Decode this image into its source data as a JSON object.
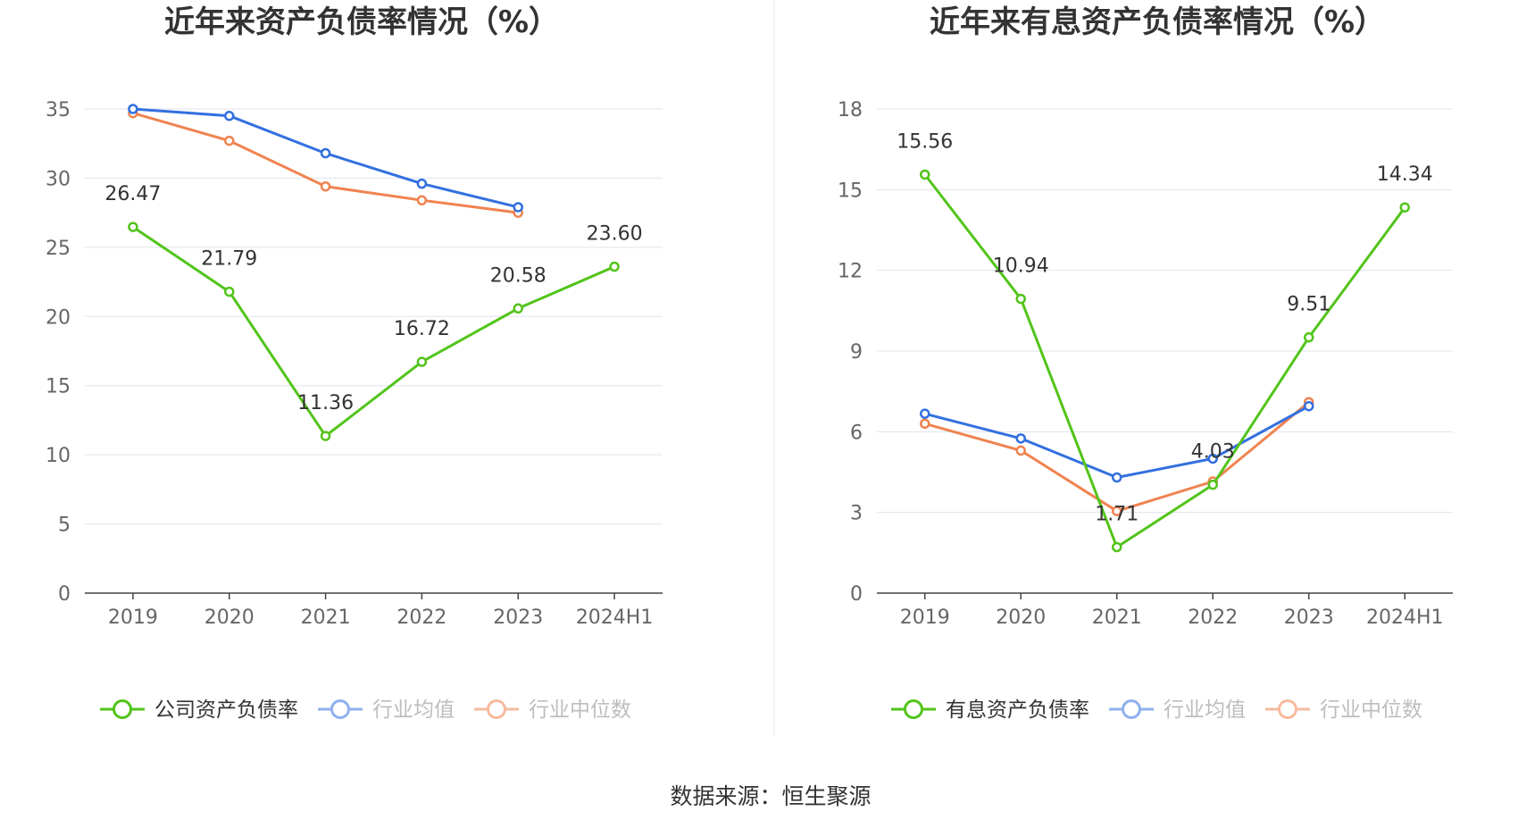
{
  "source_label": "数据来源：恒生聚源",
  "chart_data": [
    {
      "type": "line",
      "title": "近年来资产负债率情况（%）",
      "categories": [
        "2019",
        "2020",
        "2021",
        "2022",
        "2023",
        "2024H1"
      ],
      "ylim": [
        0,
        35
      ],
      "yticks": [
        0,
        5,
        10,
        15,
        20,
        25,
        30,
        35
      ],
      "grid": true,
      "legend_position": "bottom",
      "series": [
        {
          "name": "公司资产负债率",
          "color": "#52c41a",
          "labeled": true,
          "faded_legend": false,
          "values": [
            26.47,
            21.79,
            11.36,
            16.72,
            20.58,
            23.6
          ],
          "labels": [
            "26.47",
            "21.79",
            "11.36",
            "16.72",
            "20.58",
            "23.60"
          ]
        },
        {
          "name": "行业均值",
          "color": "#3370e0",
          "labeled": false,
          "faded_legend": true,
          "values": [
            35.0,
            34.5,
            31.8,
            29.6,
            27.9,
            null
          ]
        },
        {
          "name": "行业中位数",
          "color": "#f08350",
          "labeled": false,
          "faded_legend": true,
          "values": [
            34.7,
            32.7,
            29.4,
            28.4,
            27.5,
            null
          ]
        }
      ]
    },
    {
      "type": "line",
      "title": "近年来有息资产负债率情况（%）",
      "categories": [
        "2019",
        "2020",
        "2021",
        "2022",
        "2023",
        "2024H1"
      ],
      "ylim": [
        0,
        18
      ],
      "yticks": [
        0,
        3,
        6,
        9,
        12,
        15,
        18
      ],
      "grid": true,
      "legend_position": "bottom",
      "series": [
        {
          "name": "有息资产负债率",
          "color": "#52c41a",
          "labeled": true,
          "faded_legend": false,
          "values": [
            15.56,
            10.94,
            1.71,
            4.03,
            9.51,
            14.34
          ],
          "labels": [
            "15.56",
            "10.94",
            "1.71",
            "4.03",
            "9.51",
            "14.34"
          ]
        },
        {
          "name": "行业均值",
          "color": "#3370e0",
          "labeled": false,
          "faded_legend": true,
          "values": [
            6.67,
            5.75,
            4.3,
            5.0,
            6.95,
            null
          ]
        },
        {
          "name": "行业中位数",
          "color": "#f08350",
          "labeled": false,
          "faded_legend": true,
          "values": [
            6.3,
            5.3,
            3.05,
            4.15,
            7.1,
            null
          ]
        }
      ]
    }
  ]
}
